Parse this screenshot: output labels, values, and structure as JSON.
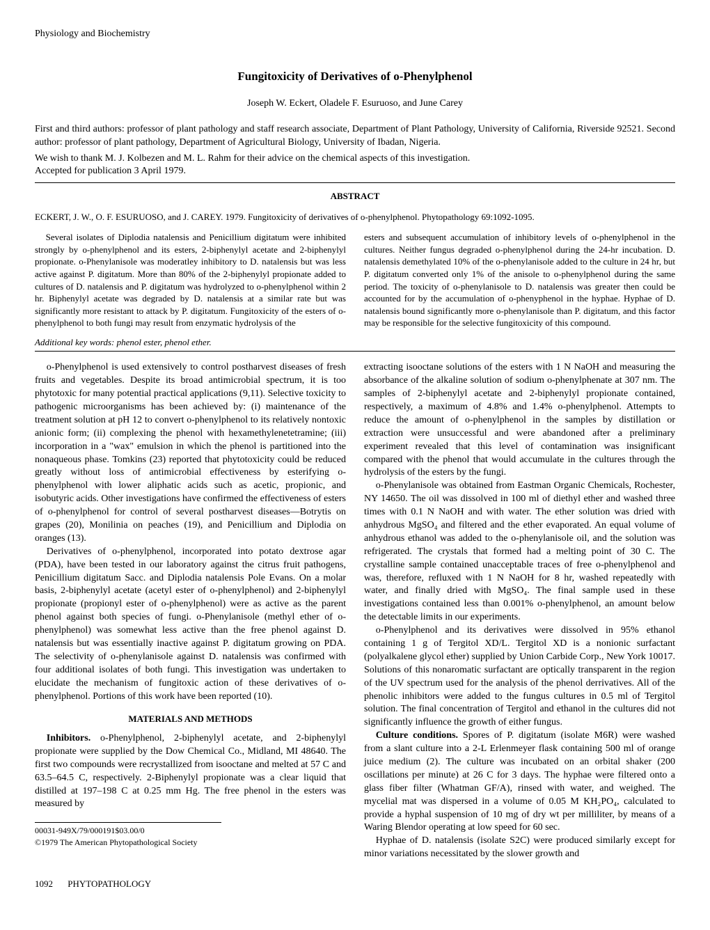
{
  "header_category": "Physiology and Biochemistry",
  "title": "Fungitoxicity of Derivatives of o-Phenylphenol",
  "authors": "Joseph W. Eckert, Oladele F. Esuruoso, and June Carey",
  "affiliations": "First and third authors: professor of plant pathology and staff research associate, Department of Plant Pathology, University of California, Riverside 92521. Second author: professor of plant pathology, Department of Agricultural Biology, University of Ibadan, Nigeria.",
  "acknowledgment": "We wish to thank M. J. Kolbezen and M. L. Rahm for their advice on the chemical aspects of this investigation.",
  "accepted": "Accepted for publication 3 April 1979.",
  "abstract_heading": "ABSTRACT",
  "citation": "ECKERT, J. W., O. F. ESURUOSO, and J. CAREY. 1979. Fungitoxicity of derivatives of o-phenylphenol. Phytopathology 69:1092-1095.",
  "abstract_left": "Several isolates of Diplodia natalensis and Penicillium digitatum were inhibited strongly by o-phenylphenol and its esters, 2-biphenylyl acetate and 2-biphenylyl propionate. o-Phenylanisole was moderatley inhibitory to D. natalensis but was less active against P. digitatum. More than 80% of the 2-biphenylyl propionate added to cultures of D. natalensis and P. digitatum was hydrolyzed to o-phenylphenol within 2 hr. Biphenylyl acetate was degraded by D. natalensis at a similar rate but was significantly more resistant to attack by P. digitatum. Fungitoxicity of the esters of o-phenylphenol to both fungi may result from enzymatic hydrolysis of the",
  "abstract_right": "esters and subsequent accumulation of inhibitory levels of o-phenylphenol in the cultures. Neither fungus degraded o-phenylphenol during the 24-hr incubation. D. natalensis demethylated 10% of the o-phenylanisole added to the culture in 24 hr, but P. digitatum converted only 1% of the anisole to o-phenylphenol during the same period. The toxicity of o-phenylanisole to D. natalensis was greater then could be accounted for by the accumulation of o-phenyphenol in the hyphae. Hyphae of D. natalensis bound significantly more o-phenylanisole than P. digitatum, and this factor may be responsible for the selective fungitoxicity of this compound.",
  "keywords": "Additional key words: phenol ester, phenol ether.",
  "body_left_p1": "o-Phenylphenol is used extensively to control postharvest diseases of fresh fruits and vegetables. Despite its broad antimicrobial spectrum, it is too phytotoxic for many potential practical applications (9,11). Selective toxicity to pathogenic microorganisms has been achieved by: (i) maintenance of the treatment solution at pH 12 to convert o-phenylphenol to its relatively nontoxic anionic form; (ii) complexing the phenol with hexamethylenetetramine; (iii) incorporation in a \"wax\" emulsion in which the phenol is partitioned into the nonaqueous phase. Tomkins (23) reported that phytotoxicity could be reduced greatly without loss of antimicrobial effectiveness by esterifying o-phenylphenol with lower aliphatic acids such as acetic, propionic, and isobutyric acids. Other investigations have confirmed the effectiveness of esters of o-phenylphenol for control of several postharvest diseases—Botrytis on grapes (20), Monilinia on peaches (19), and Penicillium and Diplodia on oranges (13).",
  "body_left_p2": "Derivatives of o-phenylphenol, incorporated into potato dextrose agar (PDA), have been tested in our laboratory against the citrus fruit pathogens, Penicillium digitatum Sacc. and Diplodia natalensis Pole Evans. On a molar basis, 2-biphenylyl acetate (acetyl ester of o-phenylphenol) and 2-biphenylyl propionate (propionyl ester of o-phenylphenol) were as active as the parent phenol against both species of fungi. o-Phenylanisole (methyl ether of o-phenylphenol) was somewhat less active than the free phenol against D. natalensis but was essentially inactive against P. digitatum growing on PDA. The selectivity of o-phenylanisole against D. natalensis was confirmed with four additional isolates of both fungi. This investigation was undertaken to elucidate the mechanism of fungitoxic action of these derivatives of o-phenylphenol. Portions of this work have been reported (10).",
  "section_mm": "MATERIALS AND METHODS",
  "body_left_p3_label": "Inhibitors.",
  "body_left_p3": " o-Phenylphenol, 2-biphenylyl acetate, and 2-biphenylyl propionate were supplied by the Dow Chemical Co., Midland, MI 48640. The first two compounds were recrystallized from isooctane and melted at 57 C and 63.5–64.5 C, respectively. 2-Biphenylyl propionate was a clear liquid that distilled at 197–198 C at 0.25 mm Hg. The free phenol in the esters was measured by",
  "footer_code": "00031-949X/79/000191$03.00/0",
  "footer_copy": "©1979 The American Phytopathological Society",
  "body_right_p1": "extracting isooctane solutions of the esters with 1 N NaOH and measuring the absorbance of the alkaline solution of sodium o-phenylphenate at 307 nm. The samples of 2-biphenylyl acetate and 2-biphenylyl propionate contained, respectively, a maximum of 4.8% and 1.4% o-phenylphenol. Attempts to reduce the amount of o-phenylphenol in the samples by distillation or extraction were unsuccessful and were abandoned after a preliminary experiment revealed that this level of contamination was insignificant compared with the phenol that would accumulate in the cultures through the hydrolysis of the esters by the fungi.",
  "body_right_p2": "o-Phenylanisole was obtained from Eastman Organic Chemicals, Rochester, NY 14650. The oil was dissolved in 100 ml of diethyl ether and washed three times with 0.1 N NaOH and with water. The ether solution was dried with anhydrous MgSO₄ and filtered and the ether evaporated. An equal volume of anhydrous ethanol was added to the o-phenylanisole oil, and the solution was refrigerated. The crystals that formed had a melting point of 30 C. The crystalline sample contained unacceptable traces of free o-phenylphenol and was, therefore, refluxed with 1 N NaOH for 8 hr, washed repeatedly with water, and finally dried with MgSO₄. The final sample used in these investigations contained less than 0.001% o-phenylphenol, an amount below the detectable limits in our experiments.",
  "body_right_p3": "o-Phenylphenol and its derivatives were dissolved in 95% ethanol containing 1 g of Tergitol XD/L. Tergitol XD is a nonionic surfactant (polyalkalene glycol ether) supplied by Union Carbide Corp., New York 10017. Solutions of this nonaromatic surfactant are optically transparent in the region of the UV spectrum used for the analysis of the phenol derrivatives. All of the phenolic inhibitors were added to the fungus cultures in 0.5 ml of Tergitol solution. The final concentration of Tergitol and ethanol in the cultures did not significantly influence the growth of either fungus.",
  "body_right_p4_label": "Culture conditions.",
  "body_right_p4": " Spores of P. digitatum (isolate M6R) were washed from a slant culture into a 2-L Erlenmeyer flask containing 500 ml of orange juice medium (2). The culture was incubated on an orbital shaker (200 oscillations per minute) at 26 C for 3 days. The hyphae were filtered onto a glass fiber filter (Whatman GF/A), rinsed with water, and weighed. The mycelial mat was dispersed in a volume of 0.05 M KH₂PO₄, calculated to provide a hyphal suspension of 10 mg of dry wt per milliliter, by means of a Waring Blendor operating at low speed for 60 sec.",
  "body_right_p5": "Hyphae of D. natalensis (isolate S2C) were produced similarly except for minor variations necessitated by the slower growth and",
  "page_number": "1092",
  "journal_name": "PHYTOPATHOLOGY"
}
